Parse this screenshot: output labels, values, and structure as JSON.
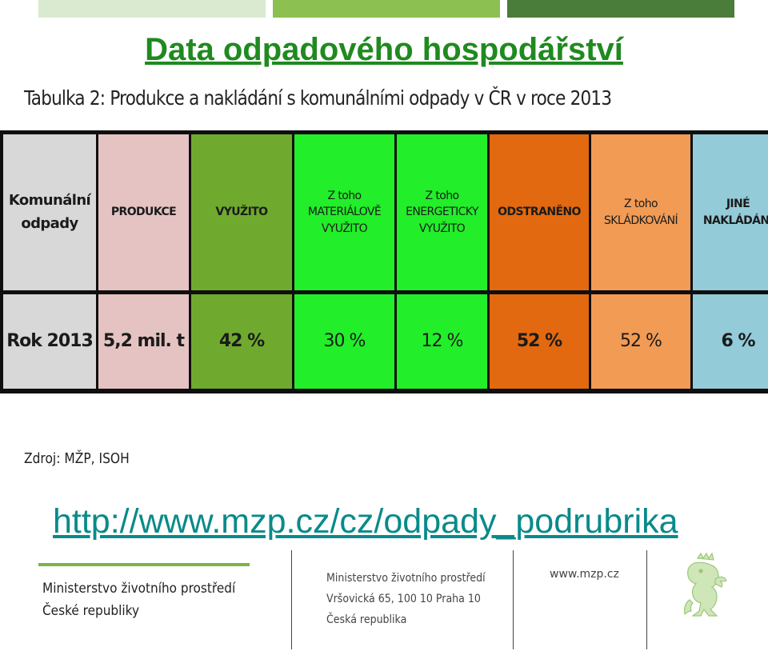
{
  "title": "Data odpadového hospodářství",
  "table_caption": "Tabulka 2: Produkce a nakládání s komunálními odpady v ČR v roce 2013",
  "table": {
    "columns": [
      {
        "header": "Komunální\nodpady",
        "value": "Rok 2013",
        "color": "#d8d8d8"
      },
      {
        "header": "PRODUKCE",
        "value": "5,2 mil. t",
        "color": "#e6c3c3"
      },
      {
        "header": "VYUŽITO",
        "value": "42 %",
        "color": "#6faa2e"
      },
      {
        "header": "Z toho\nMATERIÁLOVĚ\nVYUŽITO",
        "value": "30 %",
        "color": "#22ee2a"
      },
      {
        "header": "Z toho\nENERGETICKY\nVYUŽITO",
        "value": "12 %",
        "color": "#22ee2a"
      },
      {
        "header": "ODSTRANĚNO",
        "value": "52 %",
        "color": "#e2690f"
      },
      {
        "header": "Z toho\nSKLÁDKOVÁNÍ",
        "value": "52 %",
        "color": "#f29b55"
      },
      {
        "header": "JINÉ\nNAKLÁDÁNÍ",
        "value": "6 %",
        "color": "#93cbd8"
      }
    ]
  },
  "source": "Zdroj: MŽP, ISOH",
  "link": "http://www.mzp.cz/cz/odpady_podrubrika",
  "footer": {
    "org_line1": "Ministerstvo životního prostředí",
    "org_line2": "České republiky",
    "addr_line1": "Ministerstvo životního prostředí",
    "addr_line2": "Vršovická 65, 100 10  Praha 10",
    "addr_line3": "Česká republika",
    "web": "www.mzp.cz",
    "logo_icon": "czech-lion-icon"
  },
  "colors": {
    "title": "#1f8a1f",
    "link": "#0a8a8a",
    "accent_bars": [
      "#d9ead0",
      "#8cc152",
      "#4a7c3a"
    ]
  }
}
